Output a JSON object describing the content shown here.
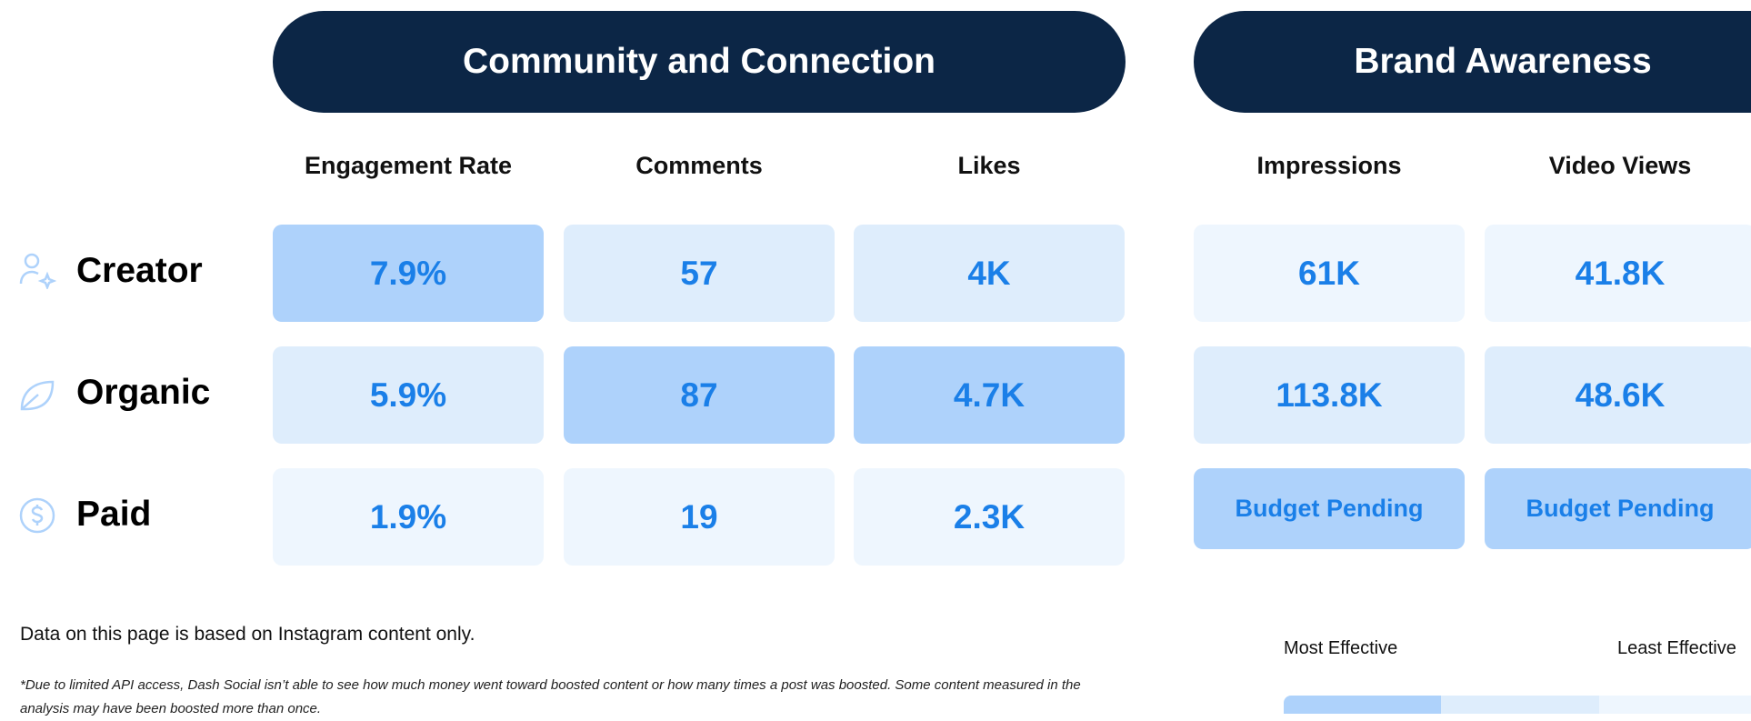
{
  "groups": [
    {
      "title": "Community and Connection",
      "columns": [
        "Engagement Rate",
        "Comments",
        "Likes"
      ]
    },
    {
      "title": "Brand Awareness",
      "columns": [
        "Impressions",
        "Video Views"
      ]
    }
  ],
  "rows": [
    {
      "label": "Creator",
      "values": [
        "7.9%",
        "57",
        "4K",
        "61K",
        "41.8K"
      ]
    },
    {
      "label": "Organic",
      "values": [
        "5.9%",
        "87",
        "4.7K",
        "113.8K",
        "48.6K"
      ]
    },
    {
      "label": "Paid",
      "values": [
        "1.9%",
        "19",
        "2.3K",
        "Budget Pending",
        "Budget Pending"
      ]
    }
  ],
  "note": "Data on this page is based on Instagram content only.",
  "footnote": "*Due to limited API access, Dash Social isn’t able to see how much money went toward boosted content or how many times a post was boosted. Some content measured in the analysis may have been boosted more than once.",
  "legend": {
    "high": "Most Effective",
    "low": "Least Effective"
  }
}
